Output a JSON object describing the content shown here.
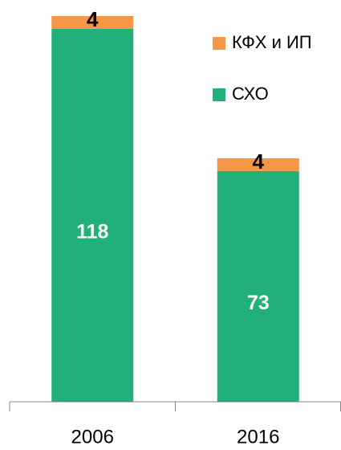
{
  "chart_data": {
    "type": "bar",
    "stacked": true,
    "categories": [
      "2006",
      "2016"
    ],
    "series": [
      {
        "name": "СХО",
        "color": "#21b07a",
        "values": [
          118,
          73
        ]
      },
      {
        "name": "КФХ и ИП",
        "color": "#f79646",
        "values": [
          4,
          4
        ]
      }
    ]
  }
}
